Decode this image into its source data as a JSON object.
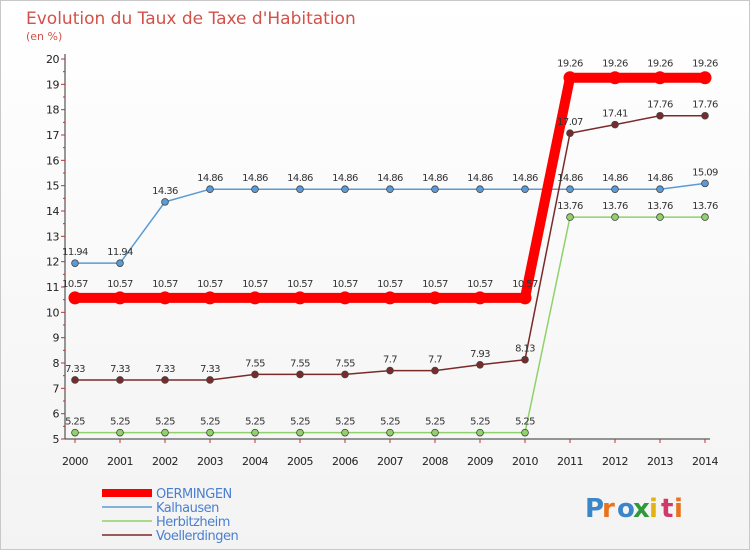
{
  "chart_data": {
    "type": "line",
    "title": "Evolution du Taux de Taxe d'Habitation",
    "subtitle": "(en %)",
    "xlabel": "",
    "ylabel": "",
    "x": [
      "2000",
      "2001",
      "2002",
      "2003",
      "2004",
      "2005",
      "2006",
      "2007",
      "2008",
      "2009",
      "2010",
      "2011",
      "2012",
      "2013",
      "2014"
    ],
    "ylim": [
      5,
      20
    ],
    "y_ticks": [
      "5",
      "6",
      "7",
      "8",
      "9",
      "10",
      "11",
      "12",
      "13",
      "14",
      "15",
      "16",
      "17",
      "18",
      "19",
      "20"
    ],
    "grid": false,
    "legend_position": "bottom-left",
    "series": [
      {
        "name": "OERMINGEN",
        "color": "#ff0000",
        "emphasis": true,
        "values": [
          10.57,
          10.57,
          10.57,
          10.57,
          10.57,
          10.57,
          10.57,
          10.57,
          10.57,
          10.57,
          10.57,
          19.26,
          19.26,
          19.26,
          19.26
        ],
        "labels": [
          "10.57",
          "10.57",
          "10.57",
          "10.57",
          "10.57",
          "10.57",
          "10.57",
          "10.57",
          "10.57",
          "10.57",
          "10.57",
          "19.26",
          "19.26",
          "19.26",
          "19.26"
        ]
      },
      {
        "name": "Kalhausen",
        "color": "#5a9bd5",
        "emphasis": false,
        "values": [
          11.94,
          11.94,
          14.36,
          14.86,
          14.86,
          14.86,
          14.86,
          14.86,
          14.86,
          14.86,
          14.86,
          14.86,
          14.86,
          14.86,
          15.09
        ],
        "labels": [
          "11.94",
          "11.94",
          "14.36",
          "14.86",
          "14.86",
          "14.86",
          "14.86",
          "14.86",
          "14.86",
          "14.86",
          "14.86",
          "14.86",
          "14.86",
          "14.86",
          "15.09"
        ]
      },
      {
        "name": "Herbitzheim",
        "color": "#90d26a",
        "emphasis": false,
        "values": [
          5.25,
          5.25,
          5.25,
          5.25,
          5.25,
          5.25,
          5.25,
          5.25,
          5.25,
          5.25,
          5.25,
          13.76,
          13.76,
          13.76,
          13.76
        ],
        "labels": [
          "5.25",
          "5.25",
          "5.25",
          "5.25",
          "5.25",
          "5.25",
          "5.25",
          "5.25",
          "5.25",
          "5.25",
          "5.25",
          "13.76",
          "13.76",
          "13.76",
          "13.76"
        ]
      },
      {
        "name": "Voellerdingen",
        "color": "#7a2a2a",
        "emphasis": false,
        "values": [
          7.33,
          7.33,
          7.33,
          7.33,
          7.55,
          7.55,
          7.55,
          7.7,
          7.7,
          7.93,
          8.13,
          17.07,
          17.41,
          17.76,
          17.76
        ],
        "labels": [
          "7.33",
          "7.33",
          "7.33",
          "7.33",
          "7.55",
          "7.55",
          "7.55",
          "7.7",
          "7.7",
          "7.93",
          "8.13",
          "17.07",
          "17.41",
          "17.76",
          "17.76"
        ]
      }
    ]
  },
  "logo": {
    "text": "Proxiti",
    "letters": [
      "P",
      "r",
      "o",
      "x",
      "i",
      "t",
      "i"
    ],
    "colors": [
      "#3a86c8",
      "#e8731e",
      "#3a86c8",
      "#2f9a3a",
      "#e3b315",
      "#d03a6a",
      "#e8731e"
    ]
  }
}
